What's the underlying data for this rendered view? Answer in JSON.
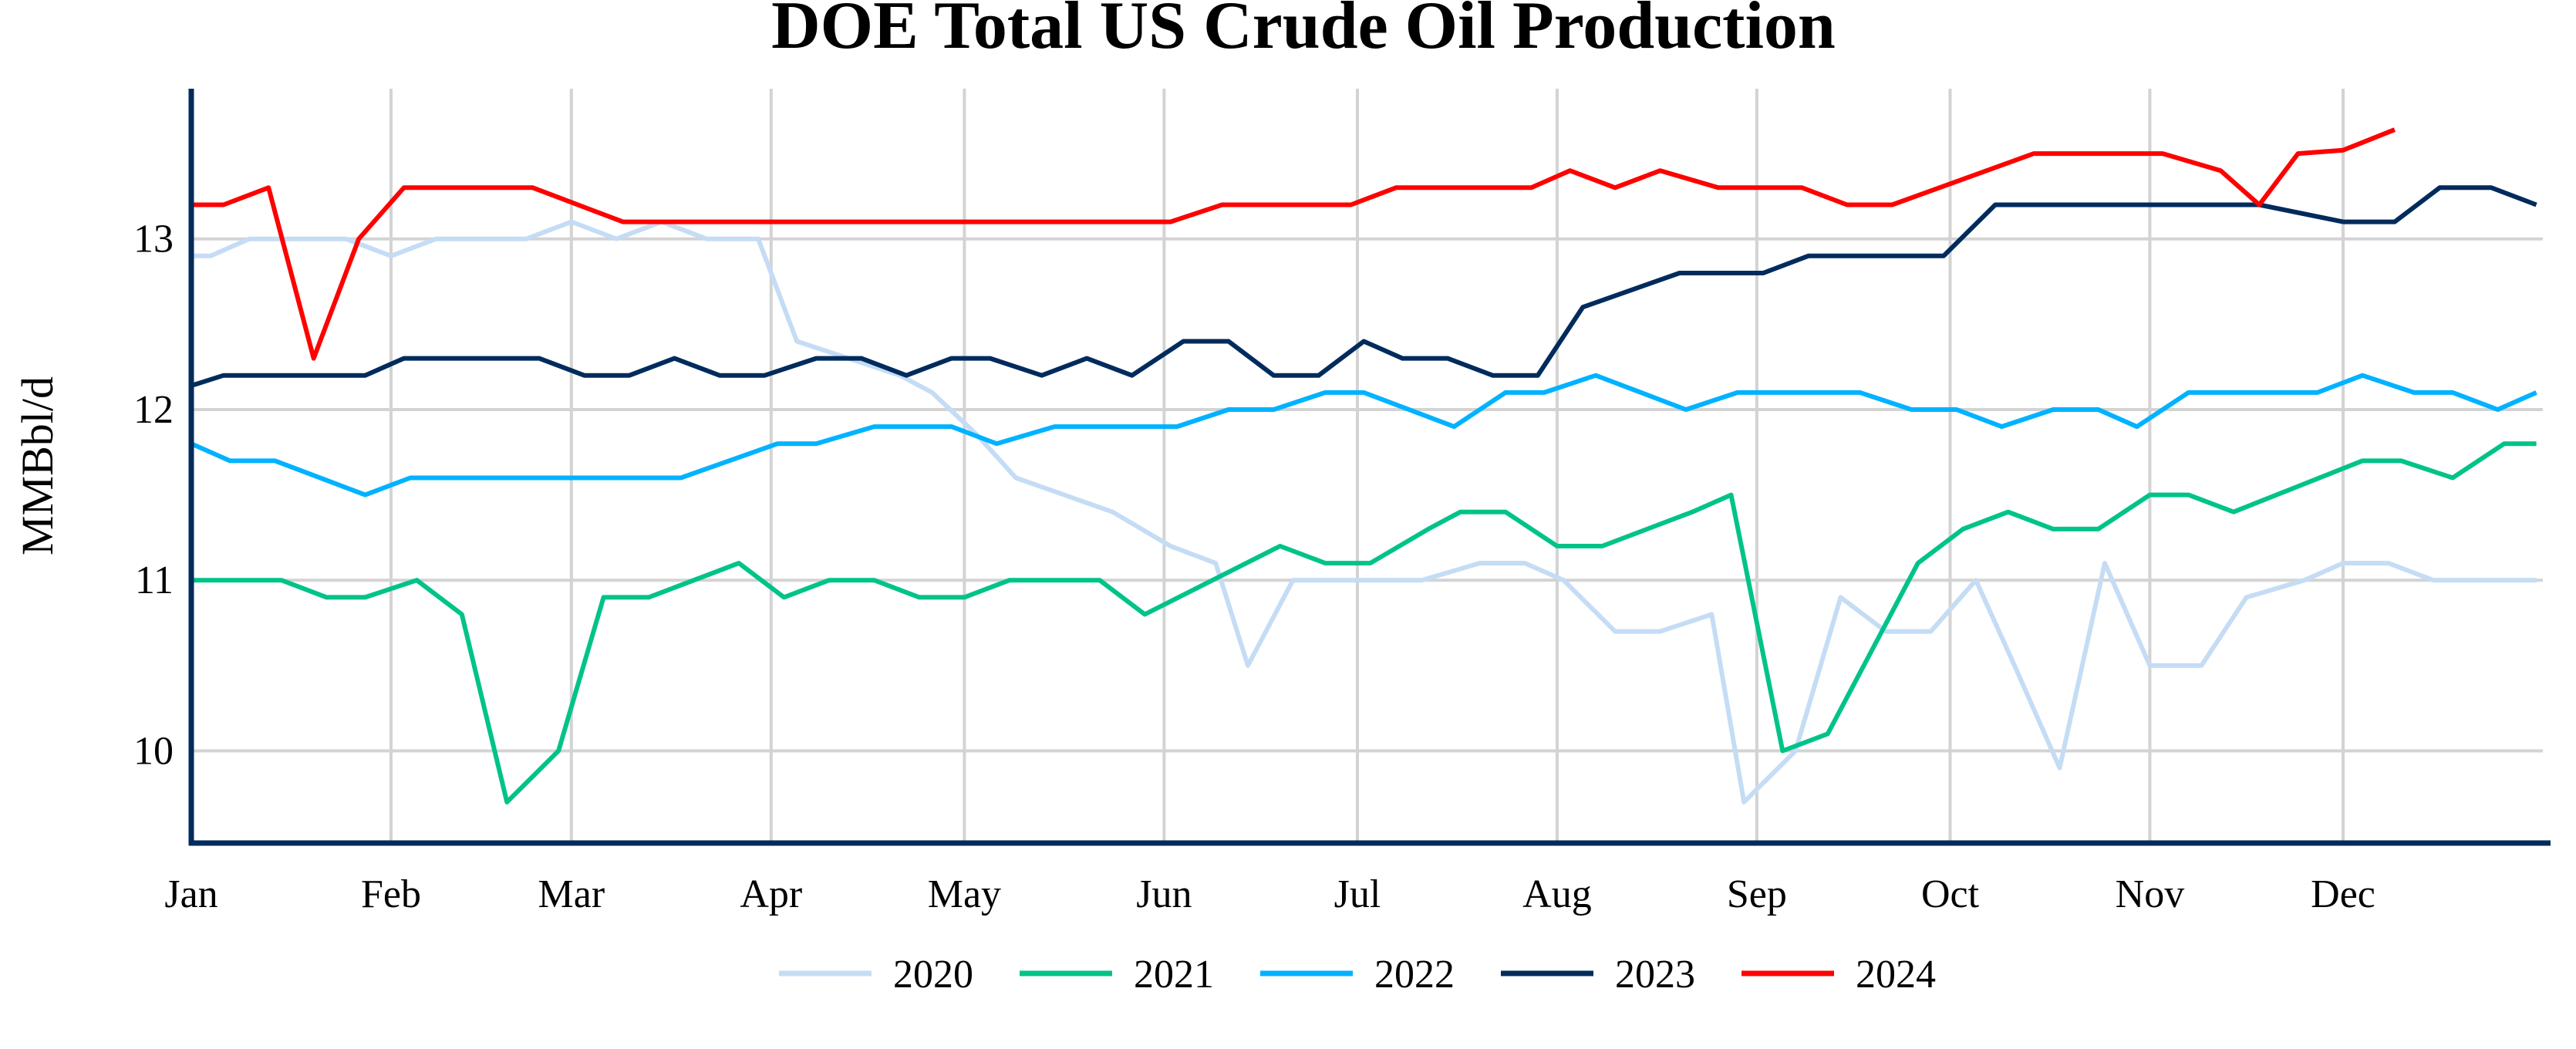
{
  "chart_data": {
    "type": "line",
    "title": "DOE Total US Crude Oil Production",
    "xlabel": "",
    "ylabel": "MMBbl/d",
    "x_tick_labels": [
      "Jan",
      "Feb",
      "Mar",
      "Apr",
      "May",
      "Jun",
      "Jul",
      "Aug",
      "Sep",
      "Oct",
      "Nov",
      "Dec"
    ],
    "y_ticks": [
      10,
      11,
      12,
      13
    ],
    "ylim": [
      9.46,
      13.88
    ],
    "xlim": [
      "01-01",
      "12-31"
    ],
    "grid": true,
    "legend_position": "bottom",
    "axis_color": "#002b5c",
    "grid_color": "#d3d3d3",
    "series": [
      {
        "name": "2020",
        "color": "#c5dcf5",
        "points": [
          [
            "01-01",
            12.9
          ],
          [
            "01-04",
            12.9
          ],
          [
            "01-10",
            13.0
          ],
          [
            "01-25",
            13.0
          ],
          [
            "02-01",
            12.9
          ],
          [
            "02-08",
            13.0
          ],
          [
            "02-22",
            13.0
          ],
          [
            "03-01",
            13.1
          ],
          [
            "03-08",
            13.0
          ],
          [
            "03-15",
            13.1
          ],
          [
            "03-22",
            13.0
          ],
          [
            "03-30",
            13.0
          ],
          [
            "04-05",
            12.4
          ],
          [
            "04-21",
            12.2
          ],
          [
            "04-26",
            12.1
          ],
          [
            "05-03",
            11.85
          ],
          [
            "05-09",
            11.6
          ],
          [
            "05-24",
            11.4
          ],
          [
            "06-02",
            11.2
          ],
          [
            "06-09",
            11.1
          ],
          [
            "06-14",
            10.5
          ],
          [
            "06-21",
            11.0
          ],
          [
            "07-11",
            11.0
          ],
          [
            "07-20",
            11.1
          ],
          [
            "07-27",
            11.1
          ],
          [
            "08-02",
            11.0
          ],
          [
            "08-10",
            10.7
          ],
          [
            "08-17",
            10.7
          ],
          [
            "08-25",
            10.8
          ],
          [
            "08-30",
            9.7
          ],
          [
            "09-07",
            10.0
          ],
          [
            "09-14",
            10.9
          ],
          [
            "09-21",
            10.7
          ],
          [
            "09-28",
            10.7
          ],
          [
            "10-05",
            11.0
          ],
          [
            "10-11",
            10.5
          ],
          [
            "10-18",
            9.9
          ],
          [
            "10-25",
            11.1
          ],
          [
            "11-01",
            10.5
          ],
          [
            "11-09",
            10.5
          ],
          [
            "11-16",
            10.9
          ],
          [
            "11-25",
            11.0
          ],
          [
            "12-01",
            11.1
          ],
          [
            "12-08",
            11.1
          ],
          [
            "12-15",
            11.0
          ],
          [
            "12-31",
            11.0
          ]
        ]
      },
      {
        "name": "2021",
        "color": "#00c389",
        "points": [
          [
            "01-01",
            11.0
          ],
          [
            "01-15",
            11.0
          ],
          [
            "01-22",
            10.9
          ],
          [
            "01-28",
            10.9
          ],
          [
            "02-05",
            11.0
          ],
          [
            "02-12",
            10.8
          ],
          [
            "02-19",
            9.7
          ],
          [
            "02-27",
            10.0
          ],
          [
            "03-06",
            10.9
          ],
          [
            "03-13",
            10.9
          ],
          [
            "03-27",
            11.1
          ],
          [
            "04-03",
            10.9
          ],
          [
            "04-10",
            11.0
          ],
          [
            "04-17",
            11.0
          ],
          [
            "04-24",
            10.9
          ],
          [
            "05-01",
            10.9
          ],
          [
            "05-08",
            11.0
          ],
          [
            "05-22",
            11.0
          ],
          [
            "05-29",
            10.8
          ],
          [
            "06-19",
            11.2
          ],
          [
            "06-26",
            11.1
          ],
          [
            "07-03",
            11.1
          ],
          [
            "07-12",
            11.3
          ],
          [
            "07-17",
            11.4
          ],
          [
            "07-24",
            11.4
          ],
          [
            "08-01",
            11.2
          ],
          [
            "08-08",
            11.2
          ],
          [
            "08-22",
            11.4
          ],
          [
            "08-28",
            11.5
          ],
          [
            "09-05",
            10.0
          ],
          [
            "09-12",
            10.1
          ],
          [
            "09-26",
            11.1
          ],
          [
            "10-03",
            11.3
          ],
          [
            "10-10",
            11.4
          ],
          [
            "10-17",
            11.3
          ],
          [
            "10-24",
            11.3
          ],
          [
            "11-01",
            11.5
          ],
          [
            "11-07",
            11.5
          ],
          [
            "11-14",
            11.4
          ],
          [
            "12-04",
            11.7
          ],
          [
            "12-10",
            11.7
          ],
          [
            "12-18",
            11.6
          ],
          [
            "12-26",
            11.8
          ],
          [
            "12-31",
            11.8
          ]
        ]
      },
      {
        "name": "2022",
        "color": "#00b2ff",
        "points": [
          [
            "01-01",
            11.8
          ],
          [
            "01-07",
            11.7
          ],
          [
            "01-14",
            11.7
          ],
          [
            "01-28",
            11.5
          ],
          [
            "02-04",
            11.6
          ],
          [
            "03-18",
            11.6
          ],
          [
            "04-02",
            11.8
          ],
          [
            "04-08",
            11.8
          ],
          [
            "04-17",
            11.9
          ],
          [
            "04-29",
            11.9
          ],
          [
            "05-06",
            11.8
          ],
          [
            "05-15",
            11.9
          ],
          [
            "06-03",
            11.9
          ],
          [
            "06-11",
            12.0
          ],
          [
            "06-18",
            12.0
          ],
          [
            "06-26",
            12.1
          ],
          [
            "07-02",
            12.1
          ],
          [
            "07-16",
            11.9
          ],
          [
            "07-24",
            12.1
          ],
          [
            "07-30",
            12.1
          ],
          [
            "08-07",
            12.2
          ],
          [
            "08-21",
            12.0
          ],
          [
            "08-29",
            12.1
          ],
          [
            "09-17",
            12.1
          ],
          [
            "09-25",
            12.0
          ],
          [
            "10-02",
            12.0
          ],
          [
            "10-09",
            11.9
          ],
          [
            "10-17",
            12.0
          ],
          [
            "10-24",
            12.0
          ],
          [
            "10-30",
            11.9
          ],
          [
            "11-07",
            12.1
          ],
          [
            "11-27",
            12.1
          ],
          [
            "12-04",
            12.2
          ],
          [
            "12-12",
            12.1
          ],
          [
            "12-18",
            12.1
          ],
          [
            "12-25",
            12.0
          ],
          [
            "12-31",
            12.1
          ]
        ]
      },
      {
        "name": "2023",
        "color": "#002b5c",
        "points": [
          [
            "01-01",
            12.14
          ],
          [
            "01-06",
            12.2
          ],
          [
            "01-28",
            12.2
          ],
          [
            "02-03",
            12.3
          ],
          [
            "02-24",
            12.3
          ],
          [
            "03-03",
            12.2
          ],
          [
            "03-10",
            12.2
          ],
          [
            "03-17",
            12.3
          ],
          [
            "03-24",
            12.2
          ],
          [
            "03-31",
            12.2
          ],
          [
            "04-08",
            12.3
          ],
          [
            "04-15",
            12.3
          ],
          [
            "04-22",
            12.2
          ],
          [
            "04-29",
            12.3
          ],
          [
            "05-05",
            12.3
          ],
          [
            "05-13",
            12.2
          ],
          [
            "05-20",
            12.3
          ],
          [
            "05-27",
            12.2
          ],
          [
            "06-04",
            12.4
          ],
          [
            "06-11",
            12.4
          ],
          [
            "06-18",
            12.2
          ],
          [
            "06-25",
            12.2
          ],
          [
            "07-02",
            12.4
          ],
          [
            "07-08",
            12.3
          ],
          [
            "07-15",
            12.3
          ],
          [
            "07-22",
            12.2
          ],
          [
            "07-29",
            12.2
          ],
          [
            "08-05",
            12.6
          ],
          [
            "08-20",
            12.8
          ],
          [
            "09-02",
            12.8
          ],
          [
            "09-09",
            12.9
          ],
          [
            "09-30",
            12.9
          ],
          [
            "10-08",
            13.2
          ],
          [
            "11-10",
            13.2
          ],
          [
            "11-18",
            13.2
          ],
          [
            "12-01",
            13.1
          ],
          [
            "12-09",
            13.1
          ],
          [
            "12-16",
            13.3
          ],
          [
            "12-24",
            13.3
          ],
          [
            "12-31",
            13.2
          ]
        ]
      },
      {
        "name": "2024",
        "color": "#ff0000",
        "points": [
          [
            "01-01",
            13.2
          ],
          [
            "01-06",
            13.2
          ],
          [
            "01-13",
            13.3
          ],
          [
            "01-20",
            12.3
          ],
          [
            "01-27",
            13.0
          ],
          [
            "02-03",
            13.3
          ],
          [
            "02-23",
            13.3
          ],
          [
            "03-09",
            13.1
          ],
          [
            "06-02",
            13.1
          ],
          [
            "06-10",
            13.2
          ],
          [
            "06-30",
            13.2
          ],
          [
            "07-07",
            13.3
          ],
          [
            "07-28",
            13.3
          ],
          [
            "08-03",
            13.4
          ],
          [
            "08-10",
            13.3
          ],
          [
            "08-17",
            13.4
          ],
          [
            "08-26",
            13.3
          ],
          [
            "09-08",
            13.3
          ],
          [
            "09-15",
            13.2
          ],
          [
            "09-22",
            13.2
          ],
          [
            "10-14",
            13.5
          ],
          [
            "11-03",
            13.5
          ],
          [
            "11-12",
            13.4
          ],
          [
            "11-18",
            13.2
          ],
          [
            "11-24",
            13.5
          ],
          [
            "12-01",
            13.52
          ],
          [
            "12-09",
            13.64
          ]
        ]
      }
    ]
  }
}
